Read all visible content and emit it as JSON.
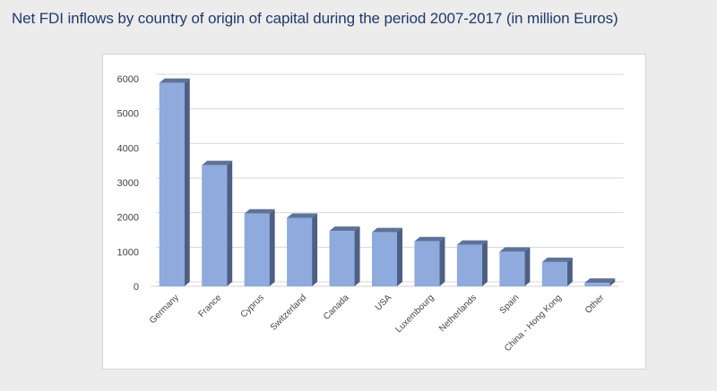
{
  "page": {
    "title": "Net FDI inflows by country of origin of capital during the period 2007-2017 (in million Euros)"
  },
  "chart_data": {
    "type": "bar",
    "title": "Net FDI inflows by country of origin of capital during the period 2007-2017 (in million Euros)",
    "xlabel": "",
    "ylabel": "",
    "categories": [
      "Germany",
      "France",
      "Cyprus",
      "Switzerland",
      "Canada",
      "USA",
      "Luxembourg",
      "Netherlands",
      "Spain",
      "China - Hong Kong",
      "Other"
    ],
    "values": [
      5880,
      3500,
      2100,
      1980,
      1600,
      1560,
      1300,
      1200,
      1000,
      700,
      100
    ],
    "ylim": [
      0,
      6000
    ],
    "yticks": [
      0,
      1000,
      2000,
      3000,
      4000,
      5000,
      6000
    ],
    "grid": true,
    "legend": "none",
    "bar_front_color": "#8faadc",
    "bar_side_color": "#4d5f85",
    "bar_top_color": "#5f7299"
  }
}
